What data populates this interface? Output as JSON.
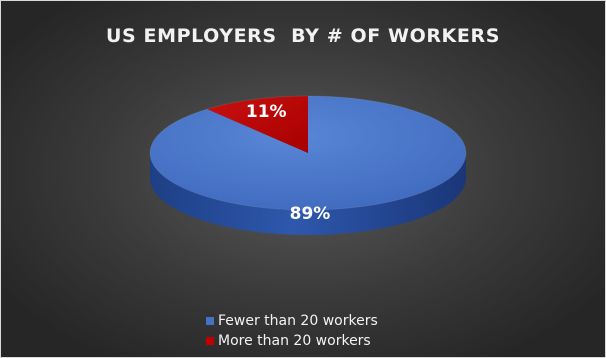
{
  "chart_data": {
    "type": "pie",
    "title": "US EMPLOYERS  BY # OF WORKERS",
    "slices": [
      {
        "label": "Fewer than 20 workers",
        "value": 89,
        "value_label": "89%",
        "color": "#4472c4"
      },
      {
        "label": "More than 20 workers",
        "value": 11,
        "value_label": "11%",
        "color": "#c00000"
      }
    ],
    "style": "3d",
    "legend_position": "bottom"
  }
}
